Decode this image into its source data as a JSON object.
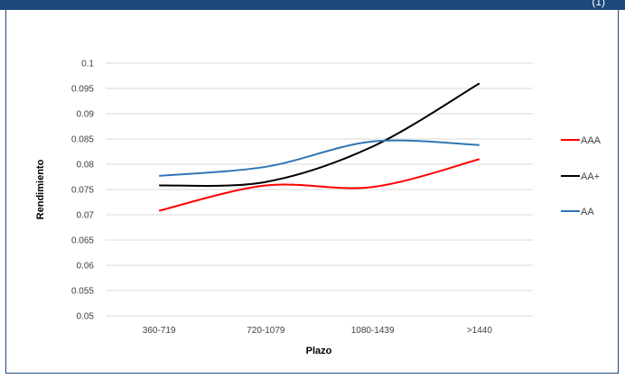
{
  "header": {
    "text": "(1)"
  },
  "chart_data": {
    "type": "line",
    "title": "",
    "xlabel": "Plazo",
    "ylabel": "Rendimiento",
    "categories": [
      "360-719",
      "720-1079",
      "1080-1439",
      ">1440"
    ],
    "yticks": [
      "0.05",
      "0.055",
      "0.06",
      "0.065",
      "0.07",
      "0.075",
      "0.08",
      "0.085",
      "0.09",
      "0.095",
      "0.1"
    ],
    "ylim": [
      0.05,
      0.1
    ],
    "grid": true,
    "smooth": true,
    "legend_position": "right",
    "series": [
      {
        "name": "AAA",
        "color": "#ff0000",
        "values": [
          0.0708,
          0.0758,
          0.0755,
          0.081
        ]
      },
      {
        "name": "AA+",
        "color": "#000000",
        "values": [
          0.0758,
          0.0765,
          0.0835,
          0.096
        ]
      },
      {
        "name": "AA",
        "color": "#2e75b6",
        "values": [
          0.0777,
          0.0795,
          0.0845,
          0.0838
        ]
      }
    ]
  }
}
